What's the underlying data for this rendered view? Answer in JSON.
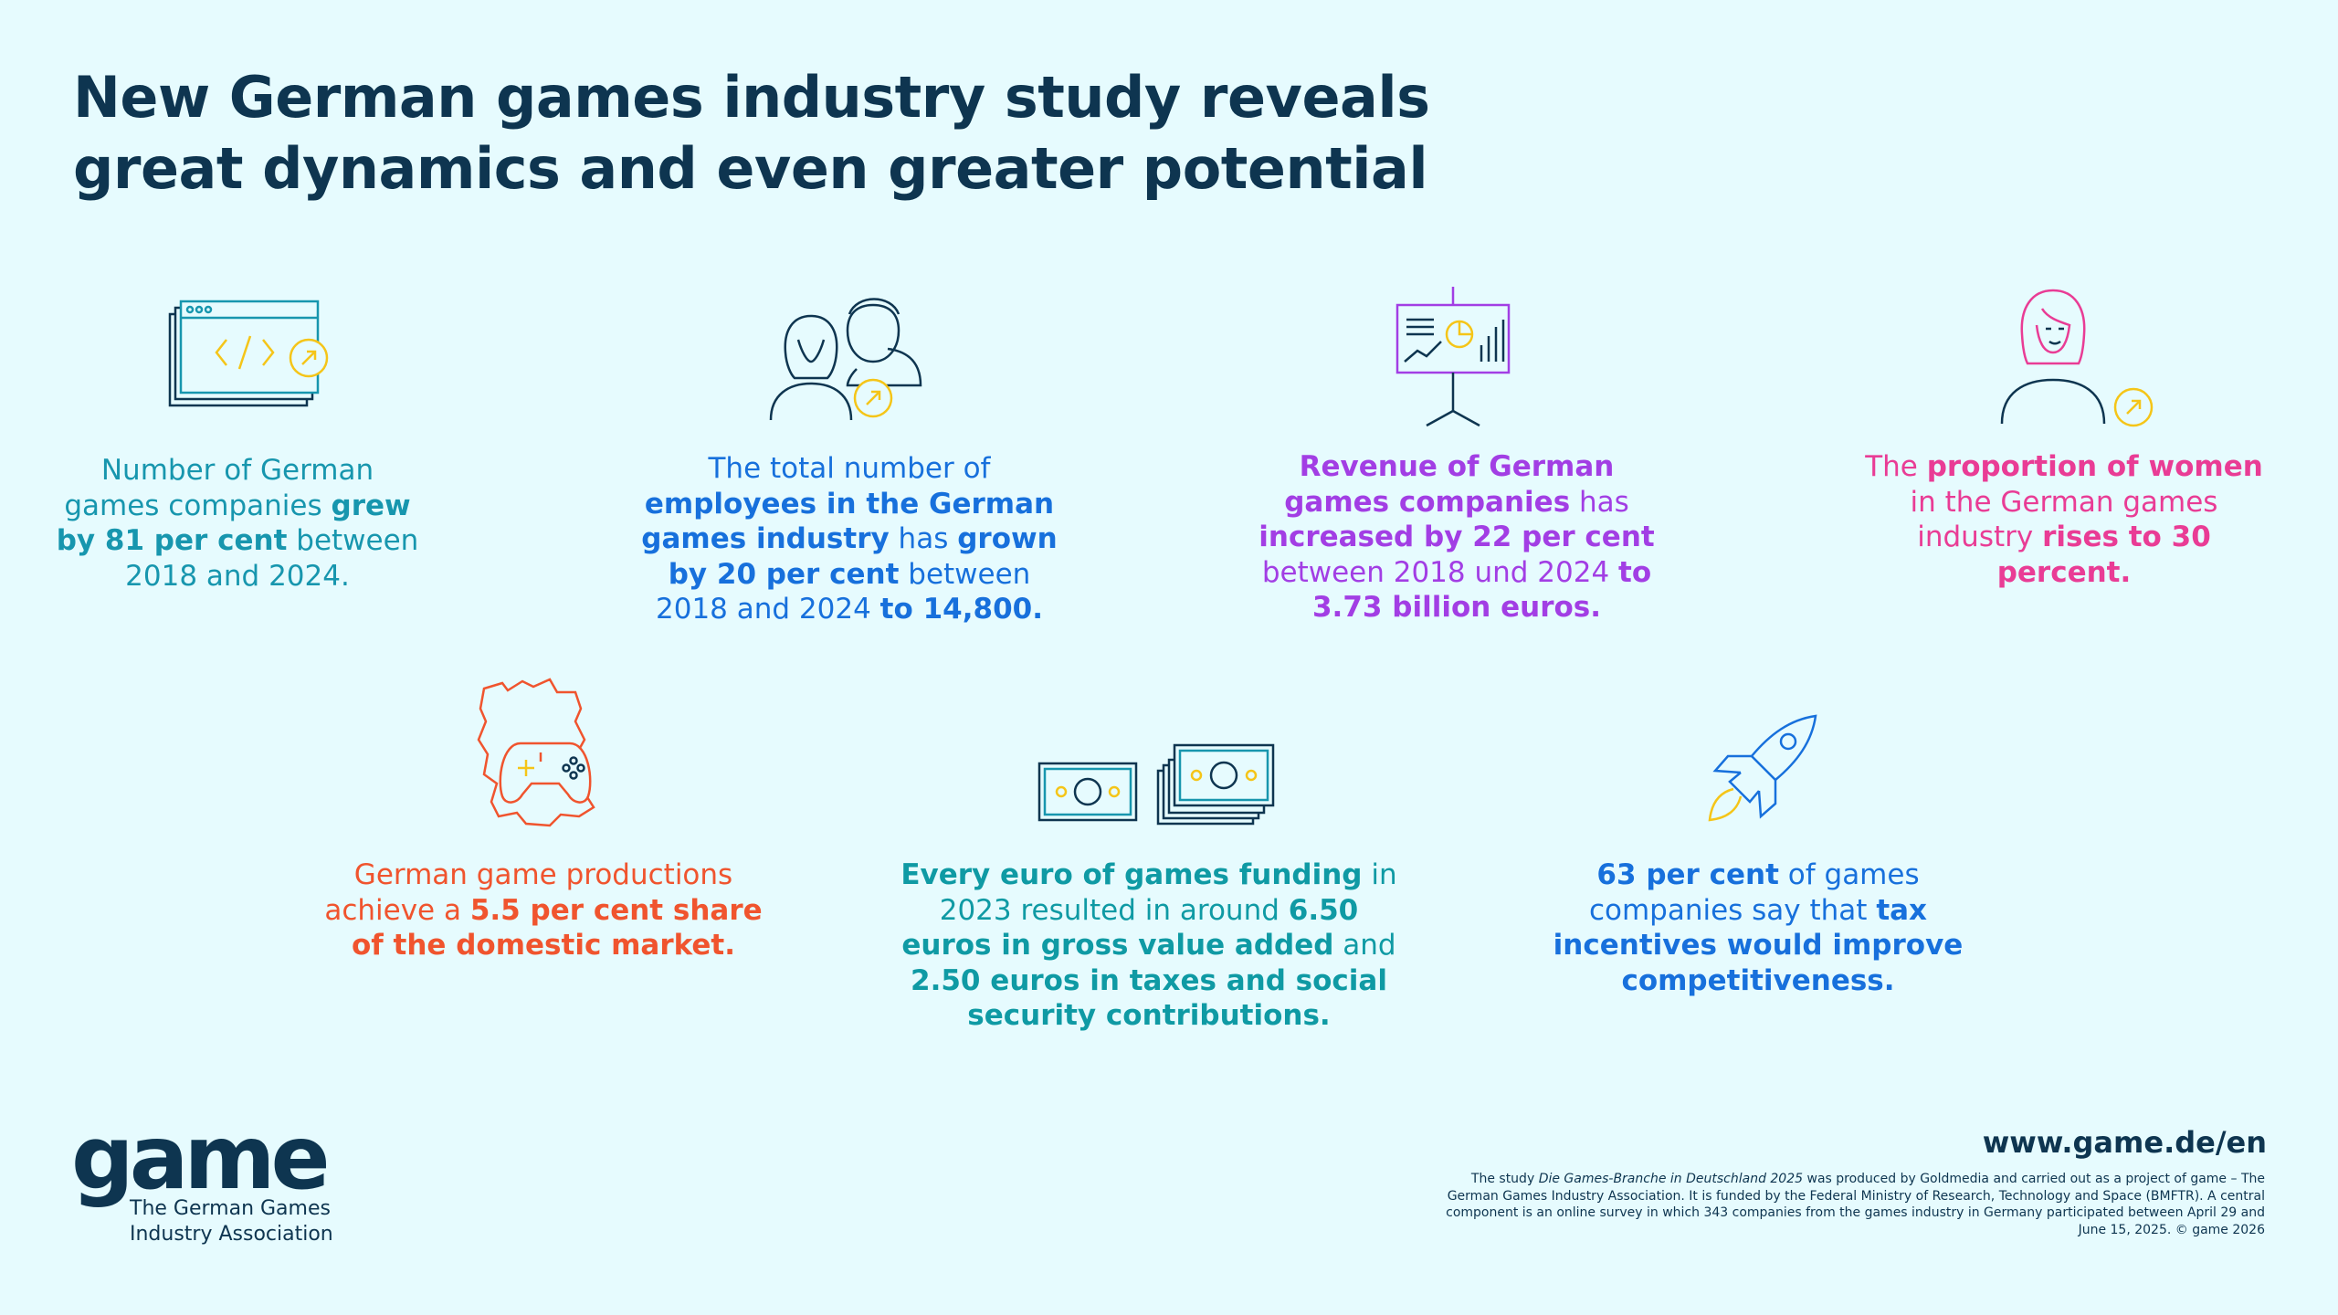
{
  "title": {
    "line1": "New German games industry study reveals",
    "line2": "great dynamics and even greater potential"
  },
  "stats": [
    {
      "id": "companies",
      "icon": "code-window-icon",
      "color": "#1796ae",
      "parts": [
        {
          "t": "Number of German games companies ",
          "b": false
        },
        {
          "t": "grew by 81 per cent",
          "b": true
        },
        {
          "t": " between 2018 and 2024.",
          "b": false
        }
      ]
    },
    {
      "id": "employees",
      "icon": "people-icon",
      "color": "#1770dc",
      "parts": [
        {
          "t": "The total number of ",
          "b": false
        },
        {
          "t": "employees in the German games industry",
          "b": true
        },
        {
          "t": " has ",
          "b": false
        },
        {
          "t": "grown by 20 per cent",
          "b": true
        },
        {
          "t": " between 2018 and 2024 ",
          "b": false
        },
        {
          "t": "to 14,800.",
          "b": true
        }
      ]
    },
    {
      "id": "revenue",
      "icon": "presentation-board-icon",
      "color": "#a23ee4",
      "parts": [
        {
          "t": "Revenue of German games companies",
          "b": true
        },
        {
          "t": " has ",
          "b": false
        },
        {
          "t": "increased by 22 per cent",
          "b": true
        },
        {
          "t": " between 2018 und 2024 ",
          "b": false
        },
        {
          "t": "to 3.73 billion euros.",
          "b": true
        }
      ]
    },
    {
      "id": "women",
      "icon": "woman-icon",
      "color": "#e93c95",
      "parts": [
        {
          "t": "The ",
          "b": false
        },
        {
          "t": "proportion of women",
          "b": true
        },
        {
          "t": " in the German games industry ",
          "b": false
        },
        {
          "t": "rises to 30 percent.",
          "b": true
        }
      ]
    },
    {
      "id": "market-share",
      "icon": "germany-gamepad-icon",
      "color": "#f0542e",
      "parts": [
        {
          "t": "German game productions achieve a ",
          "b": false
        },
        {
          "t": "5.5 per cent share of the domestic market.",
          "b": true
        }
      ]
    },
    {
      "id": "funding",
      "icon": "banknotes-icon",
      "color": "#0f9aa4",
      "parts": [
        {
          "t": "Every euro of games funding",
          "b": true
        },
        {
          "t": " in 2023 resulted in around ",
          "b": false
        },
        {
          "t": "6.50 euros in gross value added",
          "b": true
        },
        {
          "t": " and ",
          "b": false
        },
        {
          "t": "2.50 euros in taxes and social security contributions.",
          "b": true
        }
      ]
    },
    {
      "id": "tax",
      "icon": "rocket-icon",
      "color": "#1770dc",
      "parts": [
        {
          "t": "63 per cent",
          "b": true
        },
        {
          "t": " of games companies say that ",
          "b": false
        },
        {
          "t": "tax incentives would improve competitiveness.",
          "b": true
        }
      ]
    }
  ],
  "brand": {
    "logo": "game",
    "sub_line1": "The German Games",
    "sub_line2": "Industry Association",
    "url": "www.game.de/en"
  },
  "footnote": {
    "pre": "The study ",
    "study_title": "Die Games-Branche in Deutschland 2025",
    "post": " was produced by Goldmedia and carried out as a project of game – The German Games Industry Association. It is funded by the Federal Ministry of Research, Technology and Space (BMFTR). A central component is an online survey in which 343 companies from the games industry in Germany participated between April 29 and June 15, 2025. © game 2026"
  },
  "colors": {
    "background": "#e6fbfe",
    "navy": "#0e3550",
    "yellow": "#f5c518"
  }
}
